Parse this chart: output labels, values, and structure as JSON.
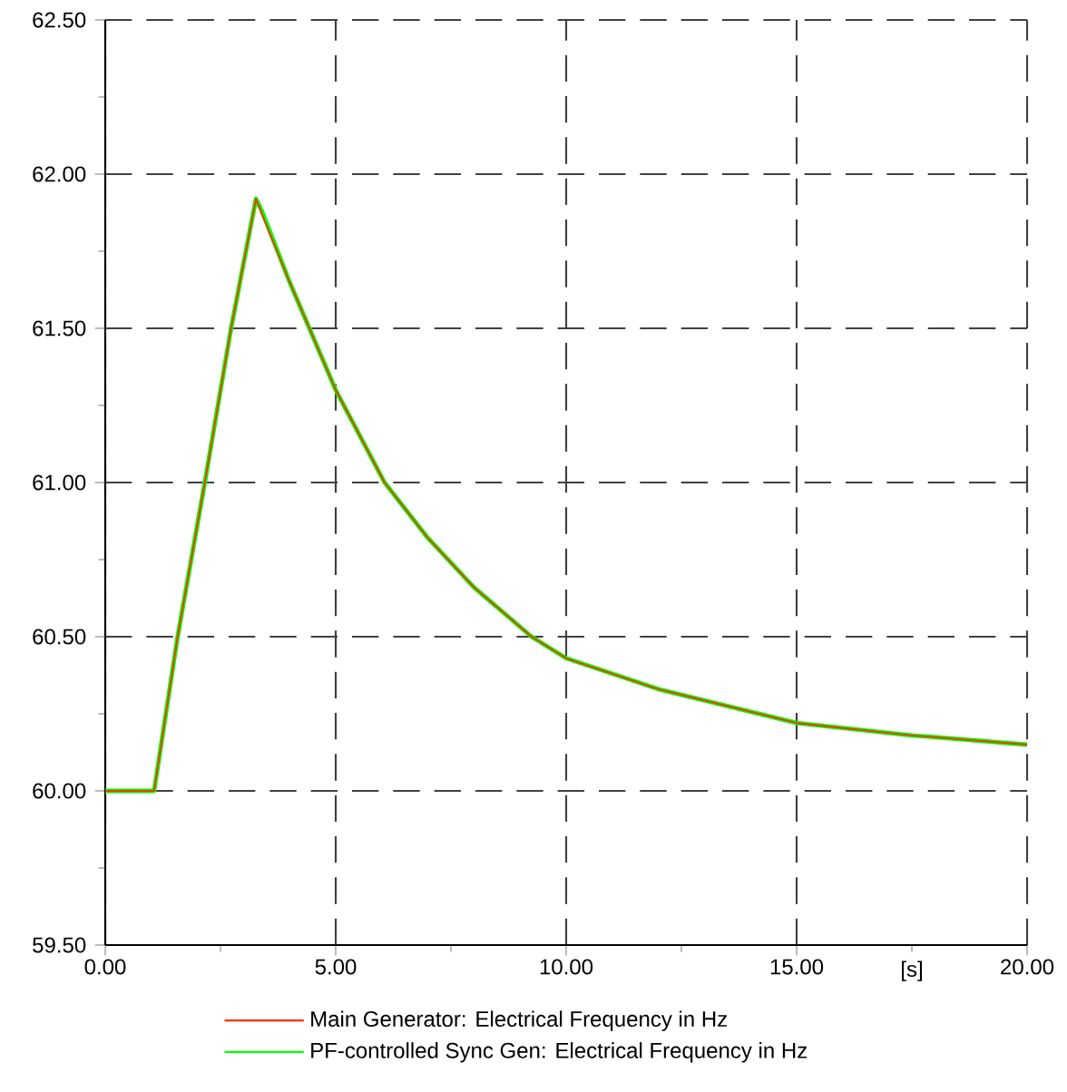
{
  "chart_data": {
    "type": "line",
    "xlabel": "[s]",
    "xlim": [
      0,
      20
    ],
    "ylim": [
      59.5,
      62.5
    ],
    "xticks": [
      {
        "value": 0,
        "label": "0.00"
      },
      {
        "value": 5,
        "label": "5.00"
      },
      {
        "value": 10,
        "label": "10.00"
      },
      {
        "value": 15,
        "label": "15.00"
      },
      {
        "value": 20,
        "label": "20.00"
      }
    ],
    "yticks": [
      {
        "value": 59.5,
        "label": "59.50"
      },
      {
        "value": 60,
        "label": "60.00"
      },
      {
        "value": 60.5,
        "label": "60.50"
      },
      {
        "value": 61,
        "label": "61.00"
      },
      {
        "value": 61.5,
        "label": "61.50"
      },
      {
        "value": 62,
        "label": "62.00"
      },
      {
        "value": 62.5,
        "label": "62.50"
      }
    ],
    "grid": true,
    "legend": "bottom",
    "marker": "none",
    "line_style": "solid",
    "x": [
      0,
      1.06,
      1.57,
      2.16,
      2.73,
      3.27,
      3.4,
      4,
      5,
      6.06,
      7,
      8,
      9.25,
      10,
      12,
      15,
      17.5,
      20
    ],
    "series": [
      {
        "name": "Main Generator: Electrical Frequency in Hz",
        "color": "#ff3300",
        "values": [
          60,
          60,
          60.5,
          61,
          61.5,
          61.92,
          61.87,
          61.65,
          61.3,
          61,
          60.82,
          60.66,
          60.5,
          60.43,
          60.33,
          60.22,
          60.18,
          60.15
        ]
      },
      {
        "name": "PF-controlled Sync Gen: Electrical Frequency in Hz",
        "color": "#00ff00",
        "values": [
          60,
          60,
          60.5,
          61,
          61.5,
          61.92,
          61.88,
          61.65,
          61.3,
          61,
          60.82,
          60.66,
          60.5,
          60.43,
          60.33,
          60.22,
          60.18,
          60.15
        ]
      }
    ]
  }
}
